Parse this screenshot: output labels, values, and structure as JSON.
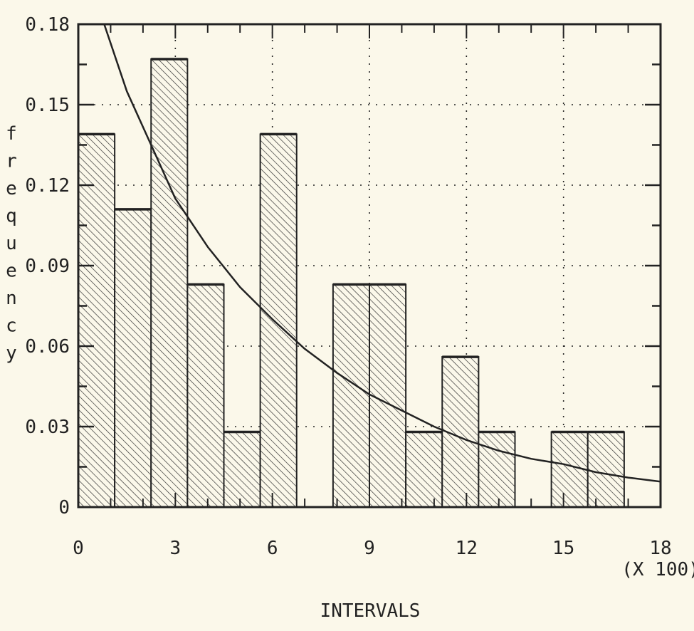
{
  "chart_data": {
    "type": "bar",
    "title": "",
    "xlabel": "INTERVALS",
    "x_multiplier_label": "(X 100)",
    "ylabel": "frequency",
    "xlim": [
      0,
      18
    ],
    "ylim": [
      0,
      0.18
    ],
    "x_ticks": [
      0,
      3,
      6,
      9,
      12,
      15,
      18
    ],
    "x_tick_labels": [
      "0",
      "3",
      "6",
      "9",
      "12",
      "15",
      "18"
    ],
    "y_ticks": [
      0,
      0.03,
      0.06,
      0.09,
      0.12,
      0.15,
      0.18
    ],
    "y_tick_labels": [
      "0",
      "0.03",
      "0.06",
      "0.09",
      "0.12",
      "0.15",
      "0.18"
    ],
    "bin_width": 1.125,
    "bins": [
      {
        "x0": 0.0,
        "x1": 1.125,
        "value": 0.139
      },
      {
        "x0": 1.125,
        "x1": 2.25,
        "value": 0.111
      },
      {
        "x0": 2.25,
        "x1": 3.375,
        "value": 0.167
      },
      {
        "x0": 3.375,
        "x1": 4.5,
        "value": 0.083
      },
      {
        "x0": 4.5,
        "x1": 5.625,
        "value": 0.028
      },
      {
        "x0": 5.625,
        "x1": 6.75,
        "value": 0.139
      },
      {
        "x0": 6.75,
        "x1": 7.875,
        "value": 0.0
      },
      {
        "x0": 7.875,
        "x1": 9.0,
        "value": 0.083
      },
      {
        "x0": 9.0,
        "x1": 10.125,
        "value": 0.083
      },
      {
        "x0": 10.125,
        "x1": 11.25,
        "value": 0.028
      },
      {
        "x0": 11.25,
        "x1": 12.375,
        "value": 0.056
      },
      {
        "x0": 12.375,
        "x1": 13.5,
        "value": 0.028
      },
      {
        "x0": 13.5,
        "x1": 14.625,
        "value": 0.0
      },
      {
        "x0": 14.625,
        "x1": 15.75,
        "value": 0.028
      },
      {
        "x0": 15.75,
        "x1": 16.875,
        "value": 0.028
      },
      {
        "x0": 16.875,
        "x1": 18.0,
        "value": 0.0
      }
    ],
    "fitted_curve": {
      "type": "exponential",
      "x": [
        0.8,
        1.5,
        2.25,
        3.0,
        4.0,
        5.0,
        6.0,
        7.0,
        8.0,
        9.0,
        10.0,
        11.0,
        12.0,
        13.0,
        14.0,
        15.0,
        16.0,
        17.0,
        18.0
      ],
      "y": [
        0.18,
        0.155,
        0.135,
        0.115,
        0.097,
        0.082,
        0.07,
        0.059,
        0.05,
        0.042,
        0.036,
        0.03,
        0.025,
        0.021,
        0.018,
        0.016,
        0.013,
        0.011,
        0.0095
      ]
    },
    "grid": true,
    "grid_style": "dotted",
    "hatch": "diagonal",
    "colors": {
      "ink": "#222222",
      "background": "#fbf8ea"
    }
  }
}
